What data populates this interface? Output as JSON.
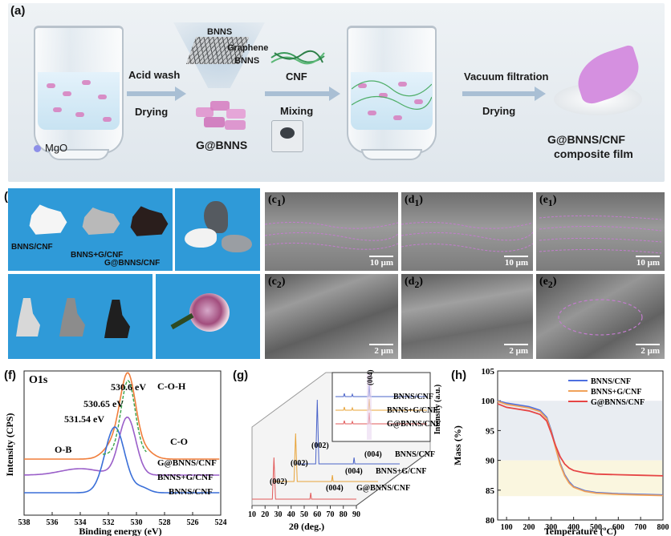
{
  "panel_a": {
    "label": "(a)",
    "steps": {
      "step1_top": "Acid wash",
      "step1_bottom": "Drying",
      "step2_top": "CNF",
      "step2_bottom": "Mixing",
      "step3_top": "Vacuum filtration",
      "step3_bottom": "Drying"
    },
    "legend_mgo": "MgO",
    "structure_labels": [
      "BNNS",
      "Graphene",
      "BNNS"
    ],
    "product_label": "G@BNNS",
    "final_label_line1": "G@BNNS/CNF",
    "final_label_line2": "composite film"
  },
  "panel_b": {
    "label": "(b)",
    "sample_labels": [
      "BNNS/CNF",
      "BNNS+G/CNF",
      "G@BNNS/CNF"
    ]
  },
  "sem": {
    "c1": {
      "label_main": "c",
      "label_sub": "1",
      "scale": "10 μm"
    },
    "d1": {
      "label_main": "d",
      "label_sub": "1",
      "scale": "10 μm"
    },
    "e1": {
      "label_main": "e",
      "label_sub": "1",
      "scale": "10 μm"
    },
    "c2": {
      "label_main": "c",
      "label_sub": "2",
      "scale": "2 μm"
    },
    "d2": {
      "label_main": "d",
      "label_sub": "2",
      "scale": "2 μm"
    },
    "e2": {
      "label_main": "e",
      "label_sub": "2",
      "scale": "2 μm"
    },
    "open_paren": "(",
    "close_paren": ")"
  },
  "chart_data": [
    {
      "panel": "(f)",
      "type": "line",
      "title": "O1s",
      "xlabel": "Binding energy (eV)",
      "ylabel": "Intensity (CPS)",
      "x_ticks": [
        538,
        536,
        534,
        532,
        530,
        528,
        526,
        524
      ],
      "xlim": [
        538,
        524
      ],
      "peak_annotations": [
        {
          "text": "530.6 eV",
          "x": 530.6
        },
        {
          "text": "530.65 eV",
          "x": 530.65
        },
        {
          "text": "531.54 eV",
          "x": 531.54
        },
        {
          "text": "C-O-H",
          "x": 530.6
        },
        {
          "text": "O-B",
          "x": 531.6
        },
        {
          "text": "C-O",
          "x": 529.4
        }
      ],
      "series": [
        {
          "name": "G@BNNS/CNF",
          "color": "#f07d3a"
        },
        {
          "name": "BNNS+G/CNF",
          "color": "#9a5fc9"
        },
        {
          "name": "BNNS/CNF",
          "color": "#3a6fd8"
        }
      ]
    },
    {
      "panel": "(g)",
      "type": "line",
      "xlabel": "2θ (deg.)",
      "ylabel": "Intensity (a.u.)",
      "x_ticks": [
        10,
        20,
        30,
        40,
        50,
        60,
        70,
        80,
        90
      ],
      "peak_labels": [
        "(002)",
        "(004)"
      ],
      "series": [
        {
          "name": "BNNS/CNF",
          "color": "#4a63c9",
          "peak_002": 26.8
        },
        {
          "name": "BNNS+G/CNF",
          "color": "#e8a43a",
          "peak_002": 26.8
        },
        {
          "name": "G@BNNS/CNF",
          "color": "#e25a5a",
          "peak_002": 26.8
        }
      ],
      "inset_peak_label": "(004)"
    },
    {
      "panel": "(h)",
      "type": "line",
      "xlabel": "Temperature (ºC)",
      "ylabel": "Mass (%)",
      "x_ticks": [
        100,
        200,
        300,
        400,
        500,
        600,
        700,
        800
      ],
      "y_ticks": [
        80,
        85,
        90,
        95,
        100,
        105
      ],
      "xlim": [
        60,
        800
      ],
      "ylim": [
        80,
        105
      ],
      "x": [
        60,
        100,
        150,
        200,
        250,
        280,
        300,
        320,
        340,
        360,
        380,
        400,
        450,
        500,
        600,
        700,
        800
      ],
      "series": [
        {
          "name": "BNNS/CNF",
          "color": "#4d6fe0",
          "values": [
            100.0,
            99.6,
            99.3,
            99.0,
            98.4,
            97.2,
            95.0,
            92.2,
            89.5,
            87.6,
            86.4,
            85.6,
            84.9,
            84.6,
            84.4,
            84.3,
            84.2
          ]
        },
        {
          "name": "BNNS+G/CNF",
          "color": "#f0a25a",
          "values": [
            99.9,
            99.4,
            99.1,
            98.8,
            98.2,
            97.0,
            94.8,
            92.0,
            89.3,
            87.4,
            86.2,
            85.5,
            84.8,
            84.5,
            84.3,
            84.2,
            84.1
          ]
        },
        {
          "name": "G@BNNS/CNF",
          "color": "#e64545",
          "values": [
            99.5,
            98.9,
            98.6,
            98.3,
            97.7,
            96.6,
            94.6,
            92.4,
            90.6,
            89.4,
            88.7,
            88.3,
            87.9,
            87.7,
            87.6,
            87.5,
            87.4
          ]
        }
      ]
    }
  ]
}
